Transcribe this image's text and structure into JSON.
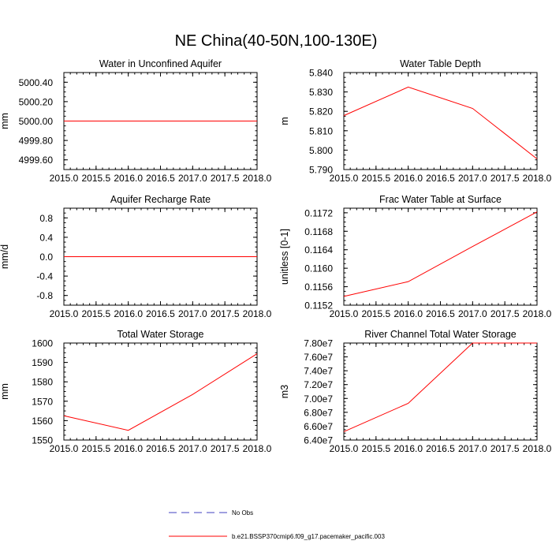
{
  "figure": {
    "title": "NE China(40-50N,100-130E)"
  },
  "chart_data": [
    {
      "type": "line",
      "title": "Water in Unconfined Aquifer",
      "xlabel": "",
      "ylabel": "mm",
      "x": [
        2015.0,
        2016.0,
        2017.0,
        2018.0
      ],
      "xlim": [
        2015.0,
        2018.0
      ],
      "xticks": [
        "2015.0",
        "2015.5",
        "2016.0",
        "2016.5",
        "2017.0",
        "2017.5",
        "2018.0"
      ],
      "ylim": [
        4999.5,
        5000.5
      ],
      "yticks": [
        "4999.60",
        "4999.80",
        "5000.00",
        "5000.20",
        "5000.40"
      ],
      "grid": false,
      "series": [
        {
          "values": [
            5000.0,
            5000.0,
            5000.0,
            5000.0
          ],
          "color": "#ff0000"
        }
      ]
    },
    {
      "type": "line",
      "title": "Water Table Depth",
      "xlabel": "",
      "ylabel": "m",
      "x": [
        2015.0,
        2016.0,
        2017.0,
        2018.0
      ],
      "xlim": [
        2015.0,
        2018.0
      ],
      "xticks": [
        "2015.0",
        "2015.5",
        "2016.0",
        "2016.5",
        "2017.0",
        "2017.5",
        "2018.0"
      ],
      "ylim": [
        5.79,
        5.84
      ],
      "yticks": [
        "5.790",
        "5.800",
        "5.810",
        "5.820",
        "5.830",
        "5.840"
      ],
      "grid": false,
      "series": [
        {
          "values": [
            5.8178,
            5.8325,
            5.8215,
            5.7955
          ],
          "color": "#ff0000"
        }
      ]
    },
    {
      "type": "line",
      "title": "Aquifer Recharge Rate",
      "xlabel": "",
      "ylabel": "mm/d",
      "x": [
        2015.0,
        2016.0,
        2017.0,
        2018.0
      ],
      "xlim": [
        2015.0,
        2018.0
      ],
      "xticks": [
        "2015.0",
        "2015.5",
        "2016.0",
        "2016.5",
        "2017.0",
        "2017.5",
        "2018.0"
      ],
      "ylim": [
        -1.0,
        1.0
      ],
      "yticks": [
        "-0.8",
        "-0.4",
        "0.0",
        "0.4",
        "0.8"
      ],
      "grid": false,
      "series": [
        {
          "values": [
            0.0,
            0.0,
            0.0,
            0.0
          ],
          "color": "#ff0000"
        }
      ]
    },
    {
      "type": "line",
      "title": "Frac Water Table at Surface",
      "xlabel": "",
      "ylabel": "unitless [0-1]",
      "x": [
        2015.0,
        2016.0,
        2017.0,
        2018.0
      ],
      "xlim": [
        2015.0,
        2018.0
      ],
      "xticks": [
        "2015.0",
        "2015.5",
        "2016.0",
        "2016.5",
        "2017.0",
        "2017.5",
        "2018.0"
      ],
      "ylim": [
        0.1152,
        0.1173
      ],
      "yticks": [
        "0.1152",
        "0.1156",
        "0.1160",
        "0.1164",
        "0.1168",
        "0.1172"
      ],
      "grid": false,
      "series": [
        {
          "values": [
            0.11539,
            0.11571,
            0.11647,
            0.11722
          ],
          "color": "#ff0000"
        }
      ]
    },
    {
      "type": "line",
      "title": "Total Water Storage",
      "xlabel": "",
      "ylabel": "mm",
      "x": [
        2015.0,
        2016.0,
        2017.0,
        2018.0
      ],
      "xlim": [
        2015.0,
        2018.0
      ],
      "xticks": [
        "2015.0",
        "2015.5",
        "2016.0",
        "2016.5",
        "2017.0",
        "2017.5",
        "2018.0"
      ],
      "ylim": [
        1550,
        1600
      ],
      "yticks": [
        "1550",
        "1560",
        "1570",
        "1580",
        "1590",
        "1600"
      ],
      "grid": false,
      "series": [
        {
          "values": [
            1562.5,
            1555.0,
            1573.5,
            1594.5
          ],
          "color": "#ff0000"
        }
      ]
    },
    {
      "type": "line",
      "title": "River Channel Total Water Storage",
      "xlabel": "",
      "ylabel": "m3",
      "x": [
        2015.0,
        2016.0,
        2017.0,
        2018.0
      ],
      "xlim": [
        2015.0,
        2018.0
      ],
      "xticks": [
        "2015.0",
        "2015.5",
        "2016.0",
        "2016.5",
        "2017.0",
        "2017.5",
        "2018.0"
      ],
      "ylim": [
        64000000,
        78000000
      ],
      "yticks": [
        "6.40e7",
        "6.60e7",
        "6.80e7",
        "7.00e7",
        "7.20e7",
        "7.40e7",
        "7.60e7",
        "7.80e7"
      ],
      "grid": false,
      "series": [
        {
          "values": [
            65200000,
            69300000,
            78000000,
            78000000
          ],
          "color": "#ff0000"
        }
      ]
    }
  ],
  "legend": {
    "placement": "bottom-center",
    "items": [
      {
        "label": "No Obs",
        "color": "#4040c0",
        "style": "dashed"
      },
      {
        "label": "b.e21.BSSP370cmip6.f09_g17.pacemaker_pacific.003",
        "color": "#ff0000",
        "style": "solid"
      }
    ]
  }
}
